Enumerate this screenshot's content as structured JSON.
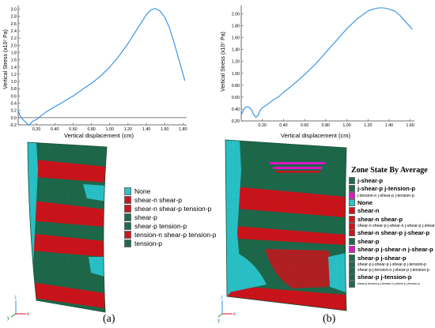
{
  "colors": {
    "line": "#2a8fe6",
    "dark_green": "#1e6b4c",
    "red": "#d0141c",
    "cyan": "#2ac6cc",
    "magenta": "#e018c8",
    "grid_gray": "#9a9a9a"
  },
  "chart_data": [
    {
      "type": "line",
      "title": "",
      "xlabel": "Vertical displacement (cm)",
      "ylabel": "Vertical Stress (x10⁷ Pa)",
      "xlim": [
        0,
        1.84
      ],
      "ylim": [
        -0.2,
        3.1
      ],
      "x_ticks": [
        "0.20",
        "0.40",
        "0.60",
        "0.80",
        "1.00",
        "1.20",
        "1.40",
        "1.60",
        "1.80"
      ],
      "y_ticks": [
        "-0.2",
        "0.0",
        "0.2",
        "0.4",
        "0.6",
        "0.8",
        "1.0",
        "1.2",
        "1.4",
        "1.6",
        "1.8",
        "2.0",
        "2.2",
        "2.4",
        "2.6",
        "2.8",
        "3.0"
      ],
      "reference_line_y": 0.0,
      "series": [
        {
          "x": [
            0.0,
            0.02,
            0.05,
            0.08,
            0.1,
            0.12,
            0.14,
            0.16,
            0.2,
            0.25,
            0.3,
            0.4,
            0.5,
            0.6,
            0.7,
            0.8,
            0.9,
            1.0,
            1.1,
            1.2,
            1.3,
            1.4,
            1.45,
            1.5,
            1.55,
            1.6,
            1.65,
            1.7,
            1.75,
            1.8,
            1.82
          ],
          "y": [
            0.2,
            0.05,
            -0.05,
            -0.12,
            -0.18,
            -0.2,
            -0.15,
            -0.1,
            -0.05,
            0.05,
            0.15,
            0.3,
            0.45,
            0.6,
            0.78,
            0.95,
            1.15,
            1.4,
            1.7,
            2.05,
            2.45,
            2.85,
            2.98,
            3.02,
            2.95,
            2.78,
            2.5,
            2.1,
            1.65,
            1.2,
            1.02
          ]
        }
      ]
    },
    {
      "type": "line",
      "title": "",
      "xlabel": "Vertical displacement (cm)",
      "ylabel": "Vertical Stress (x10⁷ Pa)",
      "xlim": [
        0,
        1.64
      ],
      "ylim": [
        0.2,
        2.14
      ],
      "x_ticks": [
        "0.20",
        "0.40",
        "0.60",
        "0.80",
        "1.00",
        "1.20",
        "1.40",
        "1.60"
      ],
      "y_ticks": [
        "0.20",
        "0.40",
        "0.60",
        "0.80",
        "1.00",
        "1.20",
        "1.40",
        "1.60",
        "1.80",
        "2.00"
      ],
      "series": [
        {
          "x": [
            0.0,
            0.02,
            0.04,
            0.06,
            0.08,
            0.1,
            0.12,
            0.14,
            0.16,
            0.18,
            0.2,
            0.25,
            0.3,
            0.35,
            0.4,
            0.5,
            0.6,
            0.7,
            0.8,
            0.9,
            1.0,
            1.1,
            1.2,
            1.25,
            1.3,
            1.35,
            1.4,
            1.45,
            1.5,
            1.55,
            1.6,
            1.62
          ],
          "y": [
            0.3,
            0.38,
            0.43,
            0.44,
            0.42,
            0.38,
            0.3,
            0.26,
            0.3,
            0.38,
            0.42,
            0.48,
            0.55,
            0.6,
            0.68,
            0.82,
            0.98,
            1.15,
            1.35,
            1.55,
            1.75,
            1.92,
            2.05,
            2.08,
            2.1,
            2.1,
            2.08,
            2.05,
            1.98,
            1.88,
            1.78,
            1.74
          ]
        }
      ]
    }
  ],
  "legend_a": [
    {
      "label": "None",
      "color": "#2ac6cc"
    },
    {
      "label": "shear-n shear-p",
      "color": "#d0141c"
    },
    {
      "label": "shear-n shear-p tension-p",
      "color": "#d0141c"
    },
    {
      "label": "shear-p",
      "color": "#1e6b4c"
    },
    {
      "label": "shear-p tension-p",
      "color": "#1e6b4c"
    },
    {
      "label": "tension-n shear-p tension-p",
      "color": "#d0141c"
    },
    {
      "label": "tension-p",
      "color": "#1e6b4c"
    }
  ],
  "legend_b": {
    "title": "Zone State By Average",
    "items": [
      {
        "label": "j-shear-p",
        "color": "#1e6b4c",
        "size": "big"
      },
      {
        "label": "j-shear-p j-tension-p",
        "color": "#1e6b4c",
        "size": "big"
      },
      {
        "label": "j-tension-n j-shear-p j-tension-p",
        "color": "#e018c8",
        "size": "med"
      },
      {
        "label": "None",
        "color": "#2ac6cc",
        "size": "big"
      },
      {
        "label": "shear-n",
        "color": "#d0141c",
        "size": "big"
      },
      {
        "label": "shear-n shear-p",
        "color": "#d0141c",
        "size": "big"
      },
      {
        "label": "shear-n shear-p j-shear-n j-shear-p j-shear-p",
        "color": "#d0141c",
        "size": "med"
      },
      {
        "label": "shear-n shear-p j-shear-p",
        "color": "#d0141c",
        "size": "big"
      },
      {
        "label": "shear-p",
        "color": "#1e6b4c",
        "size": "big"
      },
      {
        "label": "shear-p j-shear-n j-shear-p",
        "color": "#e018c8",
        "size": "big"
      },
      {
        "label": "shear-p j-shear-p",
        "color": "#1e6b4c",
        "size": "big"
      },
      {
        "label": "shear-p j-shear-p j-shear-p j-tension-p",
        "color": "#1e6b4c",
        "size": "med"
      },
      {
        "label": "shear-p j-tension-n j-shear-p j-tension-p",
        "color": "#1e6b4c",
        "size": "med"
      },
      {
        "label": "shear-p j-tension-p",
        "color": "#1e6b4c",
        "size": "big"
      },
      {
        "label": "shear-p tension-p j-tension-n j-shear-p j-tension-p",
        "color": "#1e6b4c",
        "size": "tiny"
      }
    ]
  },
  "axes_triad": {
    "x": "x",
    "y": "y",
    "z": "z"
  },
  "captions": {
    "a": "(a)",
    "b": "(b)"
  }
}
